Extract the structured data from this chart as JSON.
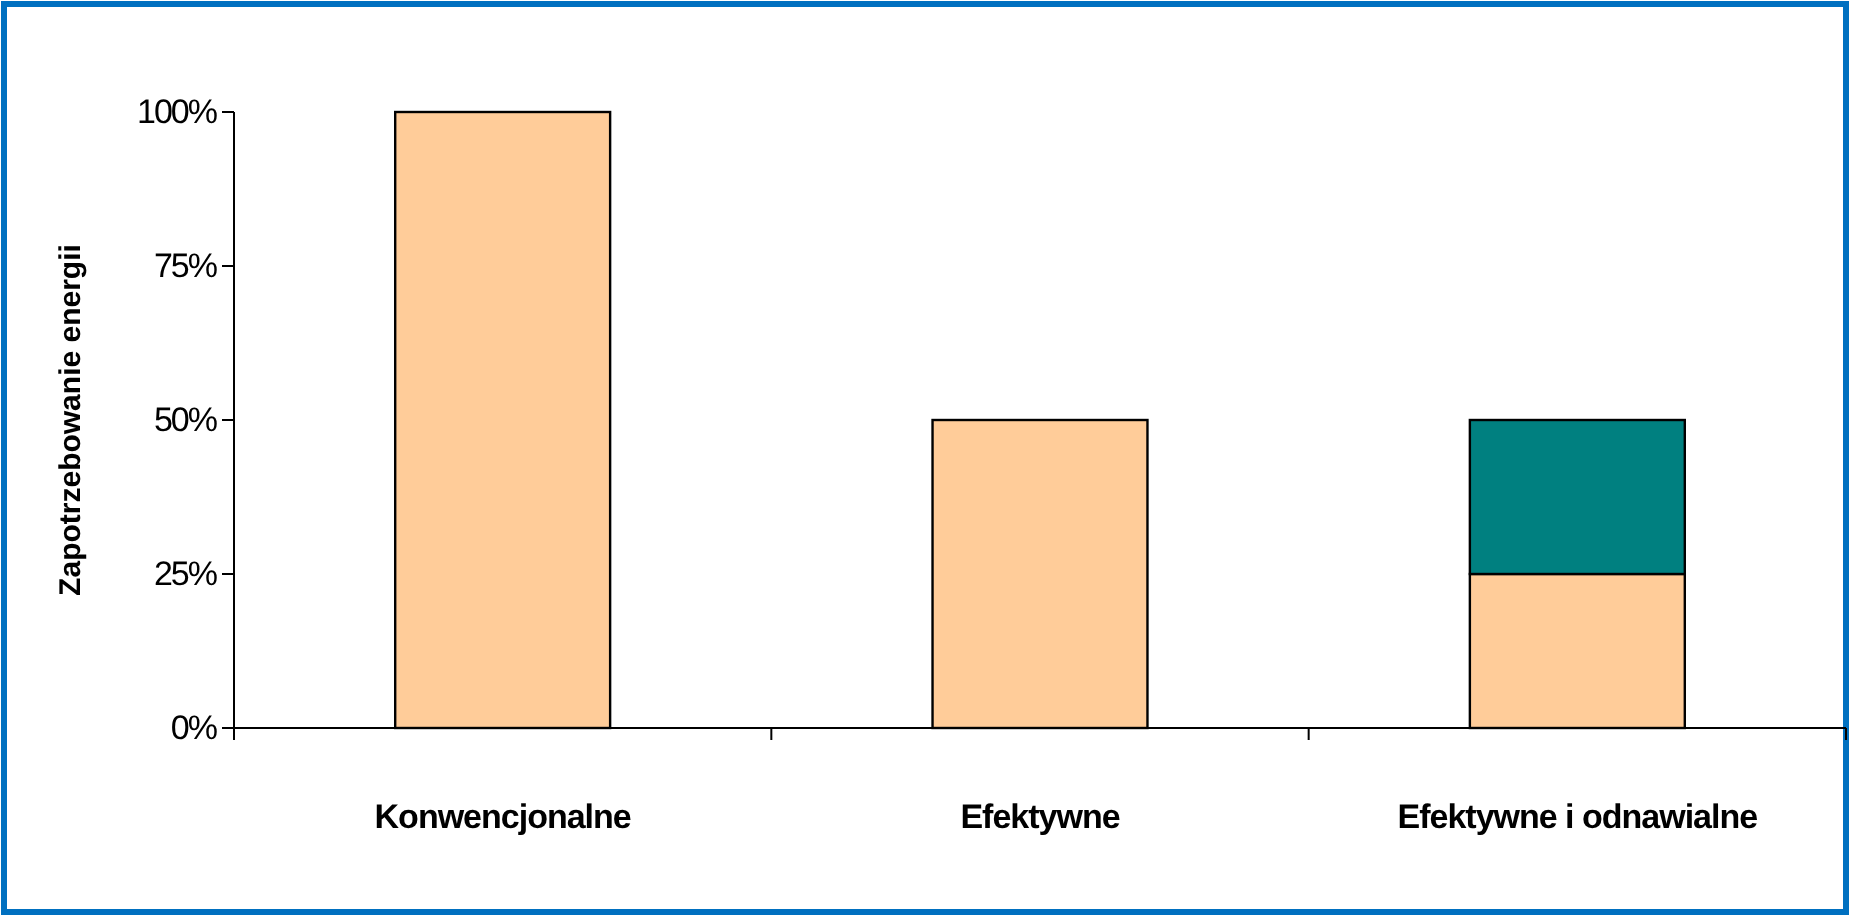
{
  "chart_data": {
    "type": "bar",
    "ylabel": "Zapotrzebowanie energii",
    "categories": [
      "Konwencjonalne",
      "Efektywne",
      "Efektywne i odnawialne"
    ],
    "stacked": true,
    "series": [
      {
        "color": "#ffcc99",
        "values": [
          100,
          50,
          25
        ]
      },
      {
        "color": "#008080",
        "values": [
          null,
          null,
          25
        ]
      }
    ],
    "ylim": [
      0,
      100
    ],
    "yticks": [
      {
        "value": 0,
        "label": "0%"
      },
      {
        "value": 25,
        "label": "25%"
      },
      {
        "value": 50,
        "label": "50%"
      },
      {
        "value": 75,
        "label": "75%"
      },
      {
        "value": 100,
        "label": "100%"
      }
    ],
    "grid": false
  }
}
